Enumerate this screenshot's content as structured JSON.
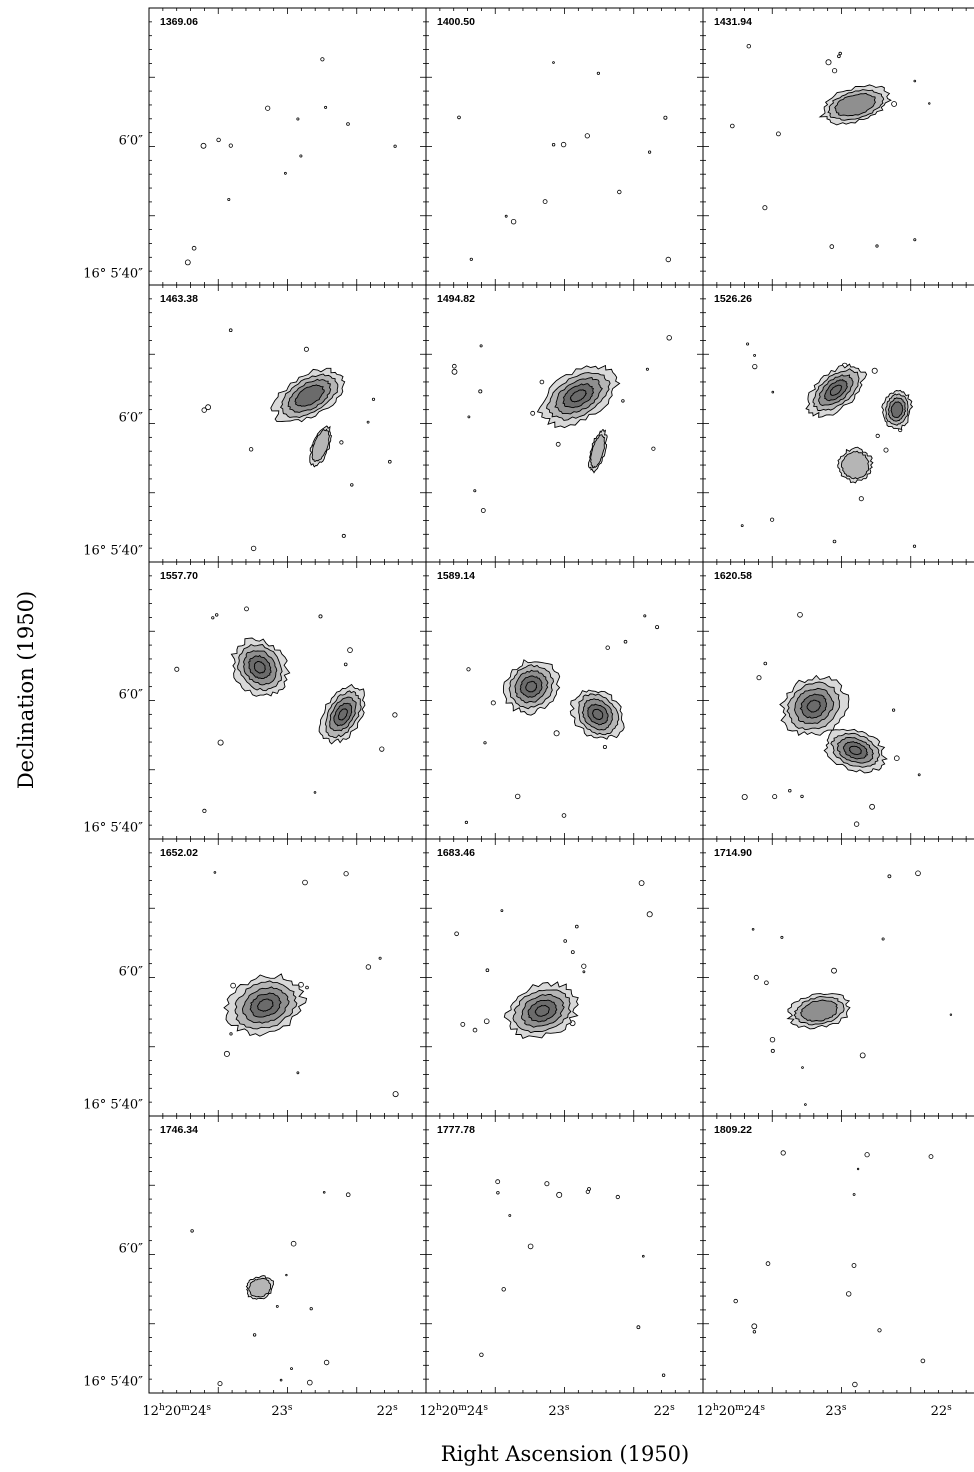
{
  "chart_data": {
    "type": "contour_channel_maps",
    "grid": {
      "rows": 5,
      "cols": 3
    },
    "xlabel": "Right Ascension (1950)",
    "ylabel": "Declination (1950)",
    "x_ticks": [
      {
        "h": "12",
        "m": "20",
        "s": "24",
        "label": "12h20m24s"
      },
      {
        "s": "23",
        "label": "23s"
      },
      {
        "s": "22",
        "label": "22s"
      }
    ],
    "y_ticks": [
      {
        "label": "6′0″",
        "deg": "",
        "arcmin": "6",
        "arcsec": "0"
      },
      {
        "label": "16° 5′40″",
        "deg": "16",
        "arcmin": "5",
        "arcsec": "40"
      }
    ],
    "panels": [
      {
        "velocity": "1369.06",
        "blobs": []
      },
      {
        "velocity": "1400.50",
        "blobs": []
      },
      {
        "velocity": "1431.94",
        "blobs": [
          [
            0.55,
            0.35,
            0.25,
            0.12,
            -15,
            2
          ]
        ]
      },
      {
        "velocity": "1463.38",
        "blobs": [
          [
            0.58,
            0.4,
            0.28,
            0.15,
            -30,
            3
          ],
          [
            0.62,
            0.58,
            0.06,
            0.15,
            20,
            1
          ]
        ]
      },
      {
        "velocity": "1494.82",
        "blobs": [
          [
            0.55,
            0.4,
            0.3,
            0.17,
            -30,
            4
          ],
          [
            0.62,
            0.6,
            0.05,
            0.15,
            15,
            1
          ]
        ]
      },
      {
        "velocity": "1526.26",
        "blobs": [
          [
            0.48,
            0.38,
            0.24,
            0.13,
            -40,
            4
          ],
          [
            0.7,
            0.45,
            0.1,
            0.14,
            10,
            3
          ],
          [
            0.55,
            0.65,
            0.12,
            0.12,
            -45,
            1
          ]
        ]
      },
      {
        "velocity": "1557.70",
        "blobs": [
          [
            0.4,
            0.38,
            0.18,
            0.22,
            -40,
            4
          ],
          [
            0.7,
            0.55,
            0.13,
            0.22,
            30,
            4
          ]
        ]
      },
      {
        "velocity": "1589.14",
        "blobs": [
          [
            0.38,
            0.45,
            0.2,
            0.18,
            -40,
            4
          ],
          [
            0.62,
            0.55,
            0.2,
            0.16,
            45,
            4
          ]
        ]
      },
      {
        "velocity": "1620.58",
        "blobs": [
          [
            0.4,
            0.52,
            0.24,
            0.2,
            -30,
            4
          ],
          [
            0.55,
            0.68,
            0.22,
            0.14,
            20,
            4
          ]
        ]
      },
      {
        "velocity": "1652.02",
        "blobs": [
          [
            0.42,
            0.6,
            0.28,
            0.2,
            -20,
            4
          ]
        ]
      },
      {
        "velocity": "1683.46",
        "blobs": [
          [
            0.42,
            0.62,
            0.26,
            0.18,
            -20,
            4
          ]
        ]
      },
      {
        "velocity": "1714.90",
        "blobs": [
          [
            0.42,
            0.62,
            0.22,
            0.12,
            -10,
            2
          ]
        ]
      },
      {
        "velocity": "1746.34",
        "blobs": [
          [
            0.4,
            0.62,
            0.1,
            0.08,
            -20,
            1
          ]
        ]
      },
      {
        "velocity": "1777.78",
        "blobs": []
      },
      {
        "velocity": "1809.22",
        "blobs": []
      }
    ]
  }
}
